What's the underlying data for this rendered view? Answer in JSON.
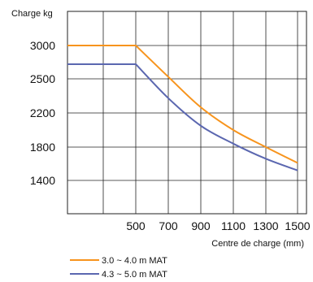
{
  "chart_data": {
    "type": "line",
    "ylabel": "Charge kg",
    "xlabel": "Centre de charge (mm)",
    "y_tick_labels": [
      "3000",
      "2500",
      "2200",
      "1800",
      "1400"
    ],
    "x_tick_labels": [
      "500",
      "700",
      "900",
      "1100",
      "1300",
      "1500"
    ],
    "x_ticks": [
      500,
      700,
      900,
      1100,
      1300,
      1500
    ],
    "grid": true,
    "legend_position": "bottom-left",
    "series": [
      {
        "name": "3.0 ~ 4.0 m MAT",
        "color": "#f7941d",
        "x": [
          0,
          500,
          700,
          900,
          1100,
          1300,
          1500
        ],
        "y": [
          3000,
          3000,
          2530,
          2250,
          2000,
          1800,
          1610
        ]
      },
      {
        "name": "4.3 ~ 5.0 m MAT",
        "color": "#5b67b0",
        "x": [
          0,
          500,
          700,
          900,
          1100,
          1300,
          1500
        ],
        "y": [
          2720,
          2720,
          2330,
          2050,
          1840,
          1660,
          1520
        ]
      }
    ]
  }
}
